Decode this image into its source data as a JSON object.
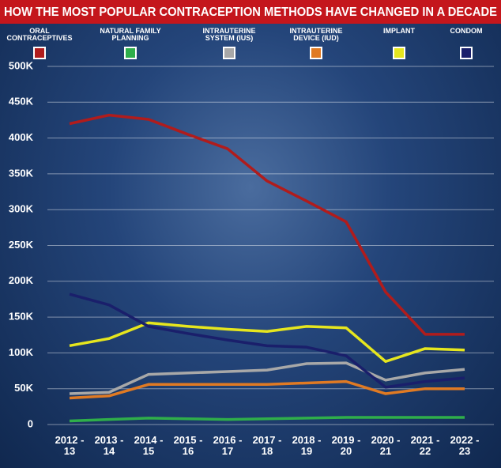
{
  "chart_data": {
    "type": "line",
    "title": "HOW THE MOST POPULAR CONTRACEPTION METHODS HAVE CHANGED IN A DECADE",
    "categories": [
      "2012 -\n13",
      "2013 -\n14",
      "2014 -\n15",
      "2015 -\n16",
      "2016 -\n17",
      "2017 -\n18",
      "2018 -\n19",
      "2019 -\n20",
      "2020 -\n21",
      "2021 -\n22",
      "2022 -\n23"
    ],
    "series": [
      {
        "name": "ORAL\nCONTRACEPTIVES",
        "color": "#b01c1c",
        "values": [
          420000,
          432000,
          426000,
          405000,
          385000,
          340000,
          312000,
          283000,
          185000,
          126000,
          126000
        ]
      },
      {
        "name": "NATURAL FAMILY\nPLANNING",
        "color": "#2fae4a",
        "values": [
          5000,
          7000,
          9000,
          8000,
          7000,
          8000,
          9000,
          10000,
          10000,
          10000,
          10000
        ]
      },
      {
        "name": "INTRAUTERINE\nSYSTEM (IUS)",
        "color": "#a8a8a8",
        "values": [
          43000,
          45000,
          70000,
          72000,
          74000,
          76000,
          85000,
          86000,
          62000,
          72000,
          77000
        ]
      },
      {
        "name": "INTRAUTERINE\nDEVICE (IUD)",
        "color": "#e07a23",
        "values": [
          37000,
          40000,
          56000,
          56000,
          56000,
          56000,
          58000,
          60000,
          43000,
          50000,
          50000
        ]
      },
      {
        "name": "IMPLANT",
        "color": "#e6e61e",
        "values": [
          110000,
          120000,
          142000,
          137000,
          133000,
          130000,
          137000,
          135000,
          88000,
          106000,
          104000
        ]
      },
      {
        "name": "CONDOM",
        "color": "#1a1f6b",
        "values": [
          182000,
          167000,
          137000,
          127000,
          118000,
          110000,
          108000,
          96000,
          52000,
          60000,
          65000
        ]
      }
    ],
    "ylim": [
      0,
      500000
    ],
    "yticks": [
      0,
      {
        "value": 50000,
        "label": "50K"
      },
      {
        "value": 100000,
        "label": "100K"
      },
      {
        "value": 150000,
        "label": "150K"
      },
      {
        "value": 200000,
        "label": "200K"
      },
      {
        "value": 250000,
        "label": "250K"
      },
      {
        "value": 300000,
        "label": "300K"
      },
      {
        "value": 350000,
        "label": "350K"
      },
      {
        "value": 400000,
        "label": "400K"
      },
      {
        "value": 450000,
        "label": "450K"
      },
      {
        "value": 500000,
        "label": "500K"
      }
    ],
    "grid": true
  }
}
